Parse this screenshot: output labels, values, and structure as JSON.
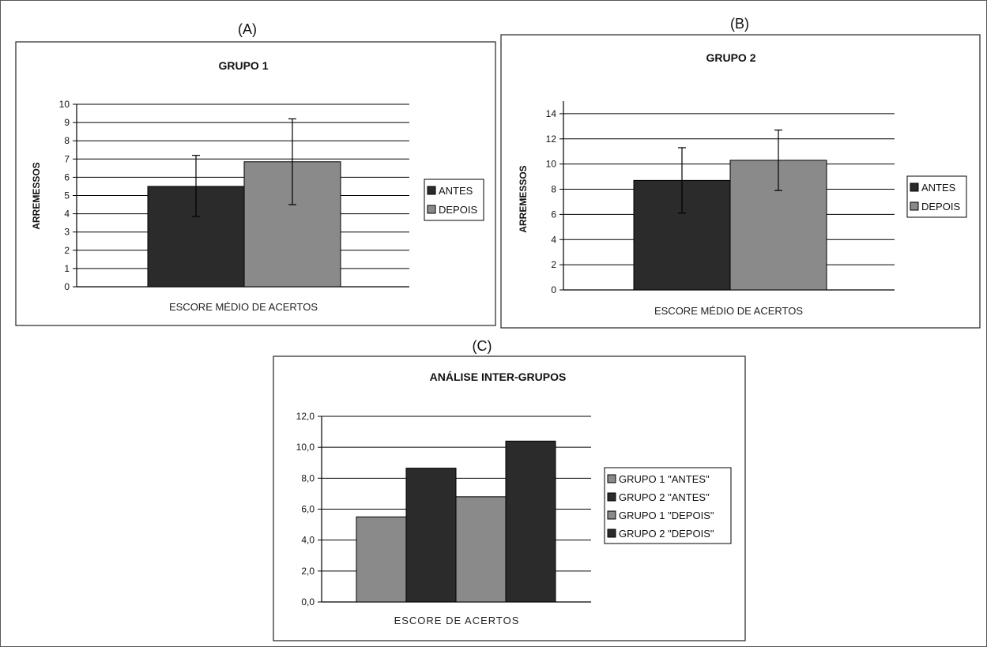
{
  "colors": {
    "dark": "#2b2b2b",
    "light": "#8a8a8a",
    "grid": "#000000",
    "frame": "#333333"
  },
  "chart_data": [
    {
      "panel_label": "(A)",
      "type": "bar",
      "title": "GRUPO 1",
      "xlabel": "ESCORE MÉDIO DE ACERTOS",
      "ylabel": "ARREMESSOS",
      "ylim": [
        0,
        10
      ],
      "yticks": [
        0,
        1,
        2,
        3,
        4,
        5,
        6,
        7,
        8,
        9,
        10
      ],
      "ytick_labels": [
        "0",
        "1",
        "2",
        "3",
        "4",
        "5",
        "6",
        "7",
        "8",
        "9",
        "10"
      ],
      "grid": true,
      "legend_position": "right",
      "series": [
        {
          "name": "ANTES",
          "value": 5.5,
          "error_low": 3.85,
          "error_high": 7.2,
          "color": "#2b2b2b"
        },
        {
          "name": "DEPOIS",
          "value": 6.85,
          "error_low": 4.5,
          "error_high": 9.2,
          "color": "#8a8a8a"
        }
      ]
    },
    {
      "panel_label": "(B)",
      "type": "bar",
      "title": "GRUPO 2",
      "xlabel": "ESCORE MÉDIO DE ACERTOS",
      "ylabel": "ARREMESSOS",
      "ylim": [
        0,
        15
      ],
      "yticks": [
        0,
        2,
        4,
        6,
        8,
        10,
        12,
        14
      ],
      "ytick_labels": [
        "0",
        "2",
        "4",
        "6",
        "8",
        "10",
        "12",
        "14"
      ],
      "grid": true,
      "legend_position": "right",
      "series": [
        {
          "name": "ANTES",
          "value": 8.7,
          "error_low": 6.1,
          "error_high": 11.3,
          "color": "#2b2b2b"
        },
        {
          "name": "DEPOIS",
          "value": 10.3,
          "error_low": 7.9,
          "error_high": 12.7,
          "color": "#8a8a8a"
        }
      ]
    },
    {
      "panel_label": "(C)",
      "type": "bar",
      "title": "ANÁLISE INTER-GRUPOS",
      "xlabel": "ESCORE DE ACERTOS",
      "ylabel": "",
      "ylim": [
        0,
        12
      ],
      "yticks": [
        0,
        2,
        4,
        6,
        8,
        10,
        12
      ],
      "ytick_labels": [
        "0,0",
        "2,0",
        "4,0",
        "6,0",
        "8,0",
        "10,0",
        "12,0"
      ],
      "grid": true,
      "legend_position": "right",
      "series": [
        {
          "name": "GRUPO 1 \"ANTES\"",
          "value": 5.5,
          "color": "#8a8a8a"
        },
        {
          "name": "GRUPO 2 \"ANTES\"",
          "value": 8.65,
          "color": "#2b2b2b"
        },
        {
          "name": "GRUPO 1 \"DEPOIS\"",
          "value": 6.8,
          "color": "#8a8a8a"
        },
        {
          "name": "GRUPO 2 \"DEPOIS\"",
          "value": 10.4,
          "color": "#2b2b2b"
        }
      ]
    }
  ]
}
